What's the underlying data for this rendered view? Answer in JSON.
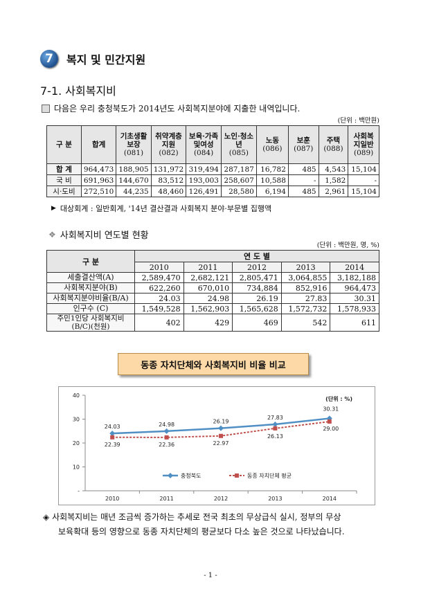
{
  "header": {
    "badge_number": "7",
    "title": "복지 및 민간지원",
    "subtitle": "7-1. 사회복지비",
    "intro_text": "다음은 우리 충청북도가 2014년도 사회복지분야에 지출한 내역입니다.",
    "unit1": "(단위 : 백만원)"
  },
  "table1": {
    "headers": [
      {
        "label": "구  분",
        "code": ""
      },
      {
        "label": "합계",
        "code": ""
      },
      {
        "label": "기초생활보장",
        "code": "(081)"
      },
      {
        "label": "취약계층지원",
        "code": "(082)"
      },
      {
        "label": "보육·가족및여성",
        "code": "(084)"
      },
      {
        "label": "노인·청소년",
        "code": "(085)"
      },
      {
        "label": "노동",
        "code": "(086)"
      },
      {
        "label": "보훈",
        "code": "(087)"
      },
      {
        "label": "주택",
        "code": "(088)"
      },
      {
        "label": "사회복지일반",
        "code": "(089)"
      }
    ],
    "rows": [
      {
        "label": "합  계",
        "values": [
          "964,473",
          "188,905",
          "131,972",
          "319,494",
          "287,187",
          "16,782",
          "485",
          "4,543",
          "15,104"
        ]
      },
      {
        "label": "국    비",
        "values": [
          "691,963",
          "144,670",
          "83,512",
          "193,003",
          "258,607",
          "10,588",
          "-",
          "1,582",
          "-"
        ]
      },
      {
        "label": "시·도비",
        "values": [
          "272,510",
          "44,235",
          "48,460",
          "126,491",
          "28,580",
          "6,194",
          "485",
          "2,961",
          "15,104"
        ]
      }
    ],
    "note": "대상회계 : 일반회계, '14년 결산결과 사회복지 분야·부문별 집행액"
  },
  "section2": {
    "title": "사회복지비 연도별 현황",
    "unit": "(단위 : 백만원, 명, %)",
    "header_label": "구  분",
    "header_group": "연    도    별",
    "years": [
      "2010",
      "2011",
      "2012",
      "2013",
      "2014"
    ],
    "rows": [
      {
        "label": "세출결산액(A)",
        "values": [
          "2,589,470",
          "2,682,121",
          "2,805,471",
          "3,064,855",
          "3,182,188"
        ]
      },
      {
        "label": "사회복지분야(B)",
        "values": [
          "622,260",
          "670,010",
          "734,884",
          "852,916",
          "964,473"
        ]
      },
      {
        "label": "사회복지분야비율(B/A)",
        "values": [
          "24.03",
          "24.98",
          "26.19",
          "27.83",
          "30.31"
        ]
      },
      {
        "label": "인구수 (C)",
        "values": [
          "1,549,528",
          "1,562,903",
          "1,565,628",
          "1,572,732",
          "1,578,933"
        ]
      },
      {
        "label": "주민1인당 사회복지비(B/C)(천원)",
        "values": [
          "402",
          "429",
          "469",
          "542",
          "611"
        ]
      }
    ]
  },
  "banner": "동종 자치단체와 사회복지비 비율 비교",
  "chart_data": {
    "type": "line",
    "categories": [
      "2010",
      "2011",
      "2012",
      "2013",
      "2014"
    ],
    "ylim": [
      0,
      40
    ],
    "yticks": [
      "-",
      "10",
      "20",
      "30",
      "40"
    ],
    "unit_label": "(단위 : %)",
    "legend_position": "bottom",
    "series": [
      {
        "name": "충청북도",
        "values": [
          24.03,
          24.98,
          26.19,
          27.83,
          30.31
        ],
        "labels": [
          "24.03",
          "24.98",
          "26.19",
          "27.83",
          "30.31"
        ],
        "color": "#4f8fc4"
      },
      {
        "name": "동종 자치단체 평균",
        "values": [
          22.39,
          22.36,
          22.97,
          26.13,
          29.0
        ],
        "labels": [
          "22.39",
          "22.36",
          "22.97",
          "26.13",
          "29.00"
        ],
        "color": "#c0504d"
      }
    ]
  },
  "bottom_text": {
    "line1": "사회복지비는 매년 조금씩 증가하는 추세로 전국 최초의 무상급식 실시, 정부의 무상",
    "line2": "보육확대 등의 영향으로 동종 자치단체의 평균보다 다소 높은 것으로 나타났습니다."
  },
  "page_number": "- 1 -"
}
